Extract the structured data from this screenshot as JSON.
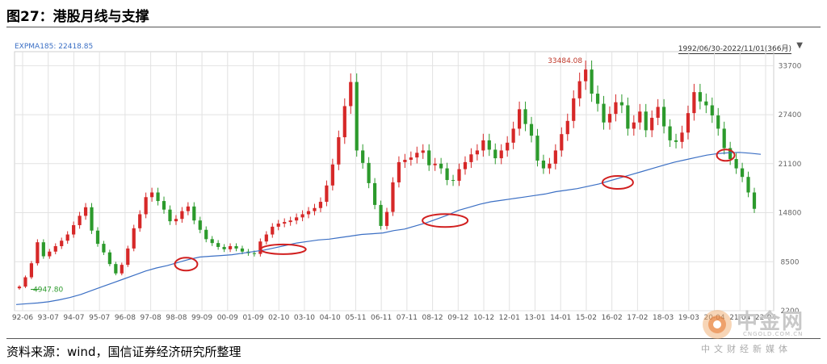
{
  "header": {
    "title": "图27：港股月线与支撑"
  },
  "source": "资料来源：wind，国信证券经济研究所整理",
  "indicator_label": "EXPMA185: 22418.85",
  "range_label": "1992/06/30-2022/11/01(366月)",
  "annotations": {
    "high": "33484.08",
    "low": "4947.80"
  },
  "logo": {
    "name": "中金网",
    "domain": "CNGOLD.COM.CN",
    "tagline": "中文财经新媒体"
  },
  "colors": {
    "up": "#d62828",
    "down": "#2c9a2c",
    "ema": "#3b6fc4",
    "circle": "#d11f1f",
    "grid": "#e2e2e2"
  },
  "chart_data": {
    "type": "candlestick",
    "x_tick_labels": [
      "92-06",
      "93-07",
      "94-07",
      "95-07",
      "96-08",
      "97-08",
      "98-08",
      "99-09",
      "00-09",
      "01-09",
      "02-10",
      "03-10",
      "04-10",
      "05-11",
      "06-11",
      "07-11",
      "08-12",
      "09-12",
      "10-12",
      "12-01",
      "13-01",
      "14-01",
      "15-02",
      "16-02",
      "17-02",
      "18-03",
      "19-03",
      "20-04",
      "21-04",
      "22-04"
    ],
    "y_ticks": [
      2200,
      8500,
      14800,
      21100,
      27400,
      33700
    ],
    "ylim": [
      2200,
      35500
    ],
    "close": [
      5300,
      6500,
      8300,
      11000,
      9200,
      9800,
      10500,
      11200,
      12000,
      13200,
      14400,
      15500,
      12500,
      10800,
      9700,
      8200,
      7000,
      8100,
      10200,
      12800,
      14600,
      16800,
      17400,
      16300,
      15200,
      13700,
      14000,
      15000,
      15600,
      13800,
      12600,
      11400,
      10900,
      10400,
      10100,
      10500,
      10200,
      9800,
      9600,
      9500,
      11100,
      12000,
      13000,
      13400,
      13600,
      13800,
      14200,
      14600,
      15000,
      15400,
      16200,
      18300,
      21000,
      24500,
      28500,
      31600,
      22800,
      21200,
      18600,
      15800,
      13100,
      14900,
      18700,
      21300,
      21600,
      21900,
      22500,
      22800,
      20900,
      21100,
      20500,
      19000,
      18900,
      20400,
      21300,
      22300,
      22800,
      24100,
      22900,
      21800,
      22800,
      23800,
      25600,
      28100,
      26200,
      24700,
      21500,
      20500,
      21100,
      22800,
      24900,
      26600,
      29500,
      31700,
      33200,
      30100,
      28800,
      26400,
      27500,
      29000,
      28600,
      25600,
      26400,
      27800,
      25400,
      27000,
      28400,
      25900,
      24100,
      23900,
      25100,
      27600,
      30300,
      29100,
      28600,
      27300,
      25600,
      23100,
      21700,
      20500,
      19400,
      17400,
      15300
    ],
    "ema": [
      3000,
      3100,
      3200,
      3350,
      3600,
      3900,
      4300,
      4800,
      5300,
      5800,
      6300,
      6800,
      7300,
      7700,
      8000,
      8400,
      8800,
      9100,
      9200,
      9300,
      9400,
      9600,
      9800,
      10000,
      10300,
      10600,
      10900,
      11100,
      11300,
      11400,
      11600,
      11800,
      12000,
      12100,
      12200,
      12500,
      12700,
      13100,
      13500,
      14000,
      14500,
      15100,
      15500,
      15900,
      16200,
      16400,
      16600,
      16800,
      17000,
      17200,
      17500,
      17700,
      17900,
      18200,
      18500,
      18900,
      19300,
      19700,
      20100,
      20500,
      20900,
      21300,
      21600,
      21900,
      22200,
      22400,
      22500,
      22550,
      22450,
      22300
    ],
    "highlighted_supports": [
      "98-08",
      "02-10",
      "08-12",
      "16-02",
      "20-04"
    ]
  }
}
